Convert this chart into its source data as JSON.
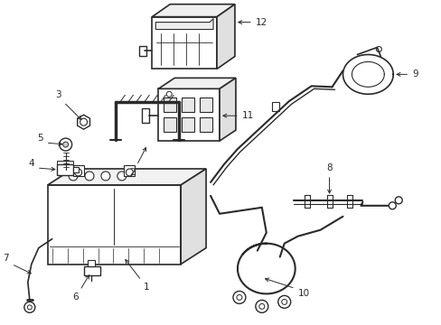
{
  "background_color": "#ffffff",
  "line_color": "#2a2a2a",
  "label_color": "#000000",
  "fig_width": 4.89,
  "fig_height": 3.6,
  "dpi": 100,
  "font_size": 7.5,
  "arrow_lw": 0.7
}
